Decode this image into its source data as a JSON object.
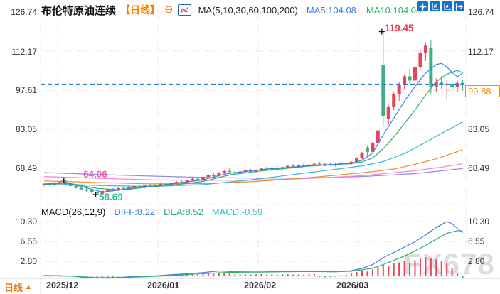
{
  "header": {
    "title": "布伦特原油连续",
    "period_tag": "【日线】",
    "collapse_glyph": "⊖",
    "ma_label": "MA(5,10,30,60,100,200)",
    "ma5_value": "MA5:104.08",
    "ma10_value": "MA10:104.08"
  },
  "toolbar": {
    "buttons": [
      {
        "icon": "crosshair-move-icon"
      },
      {
        "icon": "axis-scale-left-icon"
      },
      {
        "icon": "axis-scale-right-icon"
      },
      {
        "icon": "collapse-panel-icon"
      }
    ]
  },
  "axes": {
    "price_left": [
      "126.74",
      "112.17",
      "97.61",
      "83.05",
      "68.49"
    ],
    "price_right": [
      "126.74",
      "112.17",
      "83.05",
      "68.49"
    ],
    "macd_left": [
      "10.30",
      "6.55",
      "2.80"
    ],
    "macd_right": [
      "10.30",
      "6.55",
      "2.80"
    ],
    "dates": [
      "2025/12",
      "2026/01",
      "2026/02",
      "2026/03"
    ]
  },
  "markers": {
    "high_label": "119.45",
    "swing_high_label": "64.06",
    "swing_low_label": "58.69",
    "last_price_label": "99.88"
  },
  "macd_header": {
    "name": "MACD(26,12,9)",
    "diff": "DIFF:8.22",
    "dea": "DEA:8.52",
    "macd": "MACD:-0.59"
  },
  "footer": {
    "period": "日线",
    "arrow": "▲"
  },
  "watermark": "FX678",
  "colors": {
    "up": "#e8445a",
    "down": "#3fb07d",
    "ma5": "#3f7ee8",
    "ma10": "#2fae6e",
    "ma30": "#38b8d8",
    "ma60": "#f08c2e",
    "ma100": "#ee82dc",
    "ma200": "#8b8bea",
    "last_price_line": "#2b7de0",
    "grid": "#ecd4cb",
    "accent_orange": "#f08c00"
  },
  "chart_data": {
    "type": "candlestick+macd",
    "title": "布伦特原油连续 日线",
    "price_axis_ticks": [
      126.74,
      112.17,
      97.61,
      83.05,
      68.49
    ],
    "macd_axis_ticks": [
      10.3,
      6.55,
      2.8
    ],
    "x_dates": [
      "2025/12",
      "2026/01",
      "2026/02",
      "2026/03"
    ],
    "last_price": 99.88,
    "candles": [
      [
        62.3,
        63.0,
        61.8,
        62.6
      ],
      [
        62.6,
        63.2,
        62.0,
        62.2
      ],
      [
        62.2,
        63.4,
        61.9,
        63.1
      ],
      [
        63.1,
        63.8,
        62.6,
        63.4
      ],
      [
        63.4,
        64.06,
        62.5,
        62.7
      ],
      [
        62.7,
        63.1,
        61.7,
        61.9
      ],
      [
        61.9,
        62.4,
        60.9,
        61.2
      ],
      [
        61.2,
        61.8,
        60.3,
        60.6
      ],
      [
        60.6,
        61.2,
        59.8,
        60.1
      ],
      [
        60.4,
        60.9,
        59.2,
        59.6
      ],
      [
        59.6,
        60.1,
        58.69,
        59.1
      ],
      [
        59.1,
        60.3,
        58.8,
        60.0
      ],
      [
        60.0,
        60.9,
        59.6,
        60.5
      ],
      [
        60.5,
        61.1,
        59.9,
        60.2
      ],
      [
        60.2,
        61.3,
        60.0,
        61.1
      ],
      [
        61.1,
        61.7,
        60.5,
        60.8
      ],
      [
        60.8,
        61.8,
        60.6,
        61.5
      ],
      [
        61.5,
        62.1,
        61.0,
        61.9
      ],
      [
        61.9,
        62.4,
        61.2,
        61.5
      ],
      [
        61.5,
        62.3,
        61.1,
        62.1
      ],
      [
        62.1,
        62.7,
        61.4,
        61.7
      ],
      [
        61.7,
        62.5,
        61.3,
        62.2
      ],
      [
        62.2,
        63.1,
        61.9,
        62.8
      ],
      [
        62.8,
        63.4,
        62.0,
        62.3
      ],
      [
        62.3,
        63.2,
        62.0,
        63.0
      ],
      [
        63.0,
        63.7,
        62.5,
        63.4
      ],
      [
        63.4,
        64.1,
        62.8,
        63.1
      ],
      [
        63.1,
        64.3,
        62.9,
        64.1
      ],
      [
        64.1,
        64.9,
        63.6,
        64.6
      ],
      [
        64.6,
        65.3,
        63.9,
        64.2
      ],
      [
        64.2,
        65.6,
        64.0,
        65.3
      ],
      [
        65.3,
        66.3,
        64.9,
        66.0
      ],
      [
        66.0,
        66.7,
        65.3,
        65.6
      ],
      [
        65.6,
        67.1,
        65.4,
        66.8
      ],
      [
        66.8,
        67.9,
        66.3,
        67.5
      ],
      [
        67.5,
        68.5,
        66.9,
        67.1
      ],
      [
        67.1,
        67.8,
        66.4,
        66.8
      ],
      [
        66.8,
        67.6,
        66.3,
        67.3
      ],
      [
        67.3,
        68.0,
        66.7,
        67.7
      ],
      [
        67.7,
        68.3,
        67.0,
        67.3
      ],
      [
        67.3,
        68.1,
        66.8,
        67.9
      ],
      [
        67.9,
        68.7,
        67.4,
        68.4
      ],
      [
        68.4,
        69.1,
        67.8,
        68.0
      ],
      [
        68.0,
        68.9,
        67.5,
        68.6
      ],
      [
        68.6,
        69.3,
        68.0,
        68.2
      ],
      [
        68.2,
        69.1,
        67.8,
        68.9
      ],
      [
        68.9,
        69.7,
        68.4,
        69.4
      ],
      [
        69.4,
        70.1,
        68.7,
        69.0
      ],
      [
        69.0,
        69.9,
        68.5,
        69.6
      ],
      [
        69.6,
        70.3,
        69.0,
        69.2
      ],
      [
        69.2,
        70.1,
        68.8,
        69.9
      ],
      [
        69.9,
        70.6,
        69.3,
        70.2
      ],
      [
        70.2,
        70.9,
        69.5,
        69.7
      ],
      [
        69.7,
        70.5,
        69.2,
        70.1
      ],
      [
        70.1,
        70.7,
        69.4,
        69.6
      ],
      [
        69.6,
        70.4,
        69.1,
        70.1
      ],
      [
        70.1,
        70.9,
        69.6,
        70.6
      ],
      [
        70.6,
        71.3,
        69.9,
        70.2
      ],
      [
        70.2,
        71.1,
        69.7,
        70.9
      ],
      [
        70.9,
        72.6,
        70.5,
        72.2
      ],
      [
        72.2,
        74.6,
        71.8,
        74.1
      ],
      [
        76.2,
        77.0,
        72.6,
        74.6
      ],
      [
        74.6,
        78.3,
        74.1,
        77.9
      ],
      [
        77.9,
        83.2,
        77.3,
        82.6
      ],
      [
        107.0,
        119.45,
        84.0,
        88.0
      ],
      [
        87.0,
        92.2,
        85.0,
        91.4
      ],
      [
        91.4,
        96.8,
        90.2,
        96.1
      ],
      [
        96.1,
        100.5,
        93.6,
        99.8
      ],
      [
        99.8,
        103.5,
        98.0,
        102.8
      ],
      [
        102.8,
        105.5,
        100.0,
        101.2
      ],
      [
        101.2,
        107.0,
        100.0,
        106.2
      ],
      [
        106.2,
        112.5,
        105.0,
        111.5
      ],
      [
        111.5,
        115.5,
        108.5,
        114.2
      ],
      [
        113.5,
        116.2,
        96.0,
        99.0
      ],
      [
        99.0,
        102.0,
        97.0,
        100.5
      ],
      [
        100.5,
        103.0,
        98.0,
        99.5
      ],
      [
        99.5,
        101.5,
        94.0,
        100.0
      ],
      [
        100.0,
        101.0,
        96.5,
        98.8
      ],
      [
        98.8,
        101.2,
        97.0,
        100.3
      ],
      [
        100.3,
        101.5,
        97.5,
        99.88
      ]
    ],
    "ma_series": [
      {
        "name": "MA200",
        "color_key": "ma200",
        "points": [
          [
            0,
            66.9
          ],
          [
            10,
            66.2
          ],
          [
            20,
            65.6
          ],
          [
            30,
            65.1
          ],
          [
            40,
            64.8
          ],
          [
            50,
            64.9
          ],
          [
            60,
            65.4
          ],
          [
            70,
            66.5
          ],
          [
            79,
            68.4
          ]
        ]
      },
      {
        "name": "MA100",
        "color_key": "ma100",
        "points": [
          [
            0,
            65.4
          ],
          [
            10,
            64.8
          ],
          [
            20,
            64.2
          ],
          [
            30,
            64.0
          ],
          [
            40,
            64.1
          ],
          [
            50,
            64.7
          ],
          [
            60,
            65.7
          ],
          [
            70,
            67.6
          ],
          [
            75,
            68.9
          ],
          [
            79,
            70.2
          ]
        ]
      },
      {
        "name": "MA60",
        "color_key": "ma60",
        "points": [
          [
            0,
            63.8
          ],
          [
            10,
            63.2
          ],
          [
            20,
            62.7
          ],
          [
            30,
            62.8
          ],
          [
            40,
            63.6
          ],
          [
            50,
            65.0
          ],
          [
            60,
            66.8
          ],
          [
            66,
            68.2
          ],
          [
            70,
            70.0
          ],
          [
            74,
            72.0
          ],
          [
            79,
            75.4
          ]
        ]
      },
      {
        "name": "MA30",
        "color_key": "ma30",
        "points": [
          [
            0,
            62.9
          ],
          [
            10,
            62.1
          ],
          [
            20,
            61.7
          ],
          [
            30,
            62.4
          ],
          [
            40,
            64.4
          ],
          [
            50,
            66.9
          ],
          [
            55,
            68.1
          ],
          [
            60,
            69.4
          ],
          [
            64,
            71.0
          ],
          [
            68,
            74.0
          ],
          [
            72,
            78.2
          ],
          [
            76,
            82.6
          ],
          [
            79,
            85.8
          ]
        ]
      },
      {
        "name": "MA10",
        "color_key": "ma10",
        "points": [
          [
            0,
            62.5
          ],
          [
            5,
            62.8
          ],
          [
            10,
            61.0
          ],
          [
            15,
            60.4
          ],
          [
            20,
            61.6
          ],
          [
            25,
            62.4
          ],
          [
            30,
            63.6
          ],
          [
            35,
            66.0
          ],
          [
            40,
            67.3
          ],
          [
            45,
            68.3
          ],
          [
            50,
            69.3
          ],
          [
            55,
            69.9
          ],
          [
            58,
            70.2
          ],
          [
            60,
            70.9
          ],
          [
            62,
            72.3
          ],
          [
            64,
            75.8
          ],
          [
            66,
            80.2
          ],
          [
            68,
            85.2
          ],
          [
            70,
            90.2
          ],
          [
            72,
            95.8
          ],
          [
            74,
            100.8
          ],
          [
            76,
            103.6
          ],
          [
            78,
            105.0
          ],
          [
            79,
            104.08
          ]
        ]
      },
      {
        "name": "MA5",
        "color_key": "ma5",
        "points": [
          [
            0,
            62.5
          ],
          [
            4,
            63.2
          ],
          [
            8,
            61.2
          ],
          [
            11,
            59.6
          ],
          [
            14,
            60.4
          ],
          [
            18,
            61.5
          ],
          [
            22,
            62.1
          ],
          [
            26,
            63.2
          ],
          [
            30,
            64.2
          ],
          [
            34,
            66.3
          ],
          [
            38,
            67.3
          ],
          [
            42,
            68.2
          ],
          [
            46,
            68.8
          ],
          [
            50,
            69.4
          ],
          [
            54,
            69.9
          ],
          [
            58,
            70.3
          ],
          [
            60,
            71.5
          ],
          [
            62,
            74.2
          ],
          [
            64,
            81.0
          ],
          [
            66,
            87.2
          ],
          [
            68,
            93.5
          ],
          [
            70,
            99.0
          ],
          [
            72,
            104.0
          ],
          [
            74,
            107.2
          ],
          [
            75,
            107.6
          ],
          [
            76,
            106.3
          ],
          [
            77,
            104.3
          ],
          [
            78,
            102.6
          ],
          [
            79,
            104.08
          ]
        ]
      }
    ],
    "point_markers": [
      {
        "i": 64,
        "price": 119.45
      },
      {
        "i": 4,
        "price": 64.06
      },
      {
        "i": 10,
        "price": 58.69
      }
    ],
    "macd": {
      "diff_points": [
        [
          0,
          0.15
        ],
        [
          5,
          0.05
        ],
        [
          8,
          -0.25
        ],
        [
          12,
          -0.45
        ],
        [
          16,
          -0.1
        ],
        [
          20,
          0.0
        ],
        [
          25,
          0.35
        ],
        [
          30,
          0.7
        ],
        [
          33,
          1.0
        ],
        [
          36,
          0.85
        ],
        [
          40,
          0.8
        ],
        [
          45,
          0.9
        ],
        [
          50,
          0.95
        ],
        [
          55,
          0.85
        ],
        [
          58,
          1.05
        ],
        [
          60,
          1.5
        ],
        [
          62,
          2.2
        ],
        [
          64,
          3.5
        ],
        [
          66,
          4.5
        ],
        [
          68,
          5.5
        ],
        [
          70,
          6.5
        ],
        [
          72,
          7.8
        ],
        [
          74,
          9.2
        ],
        [
          76,
          10.3
        ],
        [
          77,
          9.9
        ],
        [
          78,
          9.0
        ],
        [
          79,
          8.22
        ]
      ],
      "dea_points": [
        [
          0,
          0.12
        ],
        [
          6,
          0.0
        ],
        [
          10,
          -0.3
        ],
        [
          16,
          -0.2
        ],
        [
          20,
          -0.05
        ],
        [
          25,
          0.2
        ],
        [
          30,
          0.5
        ],
        [
          35,
          0.75
        ],
        [
          40,
          0.78
        ],
        [
          45,
          0.85
        ],
        [
          50,
          0.9
        ],
        [
          55,
          0.85
        ],
        [
          58,
          0.95
        ],
        [
          62,
          1.5
        ],
        [
          64,
          2.2
        ],
        [
          66,
          3.0
        ],
        [
          68,
          3.8
        ],
        [
          70,
          4.8
        ],
        [
          72,
          5.8
        ],
        [
          74,
          7.0
        ],
        [
          76,
          8.1
        ],
        [
          78,
          8.6
        ],
        [
          79,
          8.52
        ]
      ],
      "hist": [
        0.2,
        0.15,
        0.2,
        0.25,
        0.1,
        0.05,
        -0.1,
        -0.2,
        -0.3,
        -0.4,
        -0.5,
        -0.45,
        -0.3,
        -0.2,
        -0.1,
        -0.05,
        0.05,
        0.1,
        0.1,
        0.15,
        0.1,
        0.15,
        0.25,
        0.2,
        0.3,
        0.35,
        0.3,
        0.4,
        0.45,
        0.35,
        0.5,
        0.55,
        0.45,
        0.55,
        0.6,
        0.5,
        0.35,
        0.3,
        0.35,
        0.3,
        0.35,
        0.4,
        0.3,
        0.35,
        0.3,
        0.35,
        0.4,
        0.3,
        0.35,
        0.3,
        0.35,
        0.4,
        -0.15,
        -0.2,
        -0.15,
        -0.1,
        0.2,
        0.3,
        0.5,
        0.8,
        1.1,
        0.9,
        1.3,
        1.7,
        2.2,
        2.0,
        2.4,
        2.6,
        2.9,
        2.6,
        3.0,
        3.3,
        3.6,
        3.4,
        3.2,
        2.9,
        2.4,
        1.6,
        0.6,
        -0.59
      ]
    }
  }
}
